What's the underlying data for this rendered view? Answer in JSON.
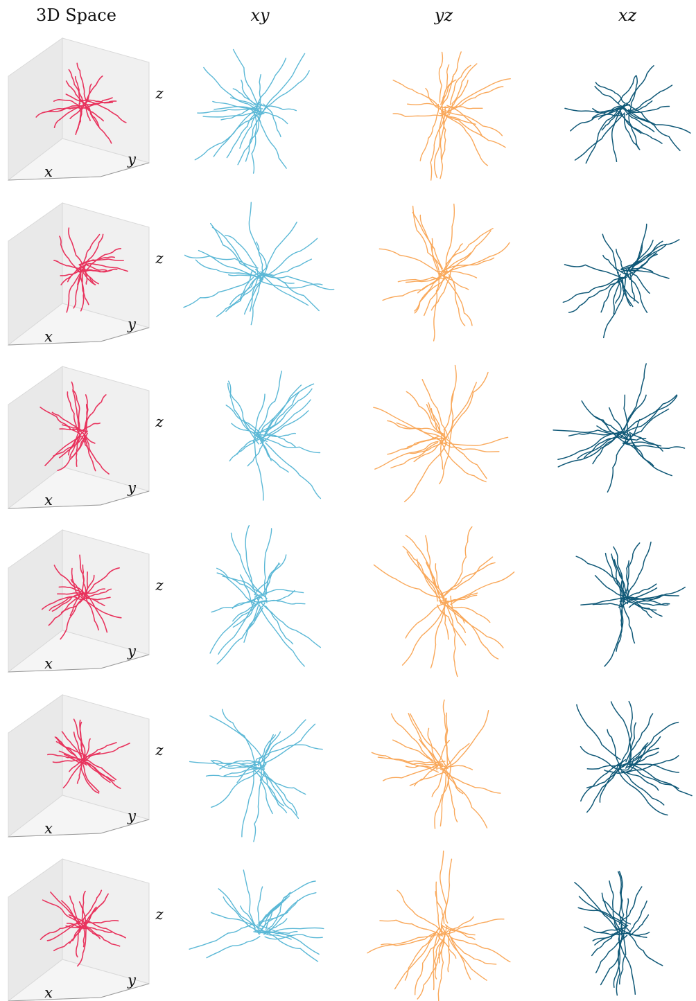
{
  "headers": {
    "space3d": "3D Space",
    "xy": "xy",
    "yz": "yz",
    "xz": "xz"
  },
  "axis_labels": {
    "x": "x",
    "y": "y",
    "z": "z"
  },
  "colors": {
    "space3d": "#e8335d",
    "xy": "#5bb8d6",
    "yz": "#f9a85a",
    "xz": "#0f5877",
    "box_face": "#f0f0f0",
    "box_edge": "#d9d9d9"
  },
  "rows": [
    {
      "id": "neuron-1"
    },
    {
      "id": "neuron-2"
    },
    {
      "id": "neuron-3"
    },
    {
      "id": "neuron-4"
    },
    {
      "id": "neuron-5"
    },
    {
      "id": "neuron-6"
    }
  ]
}
